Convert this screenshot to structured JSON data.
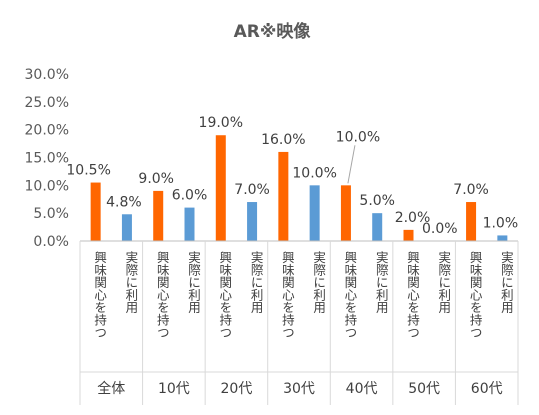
{
  "chart_data": {
    "type": "bar",
    "title": "AR※映像",
    "yticks": [
      "0.0%",
      "5.0%",
      "10.0%",
      "15.0%",
      "20.0%",
      "25.0%",
      "30.0%"
    ],
    "ylim": [
      0,
      30
    ],
    "grid": false,
    "legend": "none",
    "series_labels": [
      "興味関心を持つ",
      "実際に利用"
    ],
    "groups": [
      "全体",
      "10代",
      "20代",
      "30代",
      "40代",
      "50代",
      "60代"
    ],
    "series": [
      {
        "values": [
          10.5,
          9.0,
          19.0,
          16.0,
          10.0,
          2.0,
          7.0
        ],
        "labels": [
          "10.5%",
          "9.0%",
          "19.0%",
          "16.0%",
          "10.0%",
          "2.0%",
          "7.0%"
        ],
        "color": "#FF6600"
      },
      {
        "values": [
          4.8,
          6.0,
          7.0,
          10.0,
          5.0,
          0.0,
          1.0
        ],
        "labels": [
          "4.8%",
          "6.0%",
          "7.0%",
          "10.0%",
          "5.0%",
          "0.0%",
          "1.0%"
        ],
        "color": "#5B9BD5"
      }
    ]
  }
}
